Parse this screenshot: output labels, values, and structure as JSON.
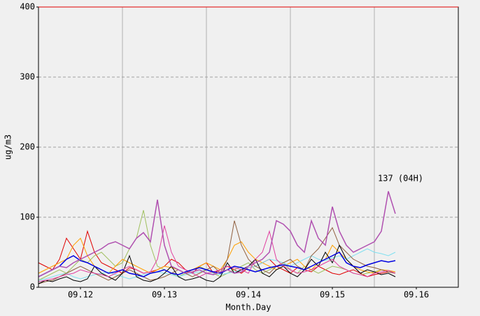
{
  "chart_data": {
    "type": "line",
    "xlabel": "Month.Day",
    "ylabel": "ug/m3",
    "xlim": [
      0,
      120
    ],
    "ylim": [
      0,
      400
    ],
    "yticks": [
      0,
      100,
      200,
      300,
      400
    ],
    "xticks": [
      {
        "value": 12,
        "label": "09.12"
      },
      {
        "value": 36,
        "label": "09.13"
      },
      {
        "value": 60,
        "label": "09.14"
      },
      {
        "value": 84,
        "label": "09.15"
      },
      {
        "value": 108,
        "label": "09.16"
      }
    ],
    "xgrid": [
      24,
      48,
      72,
      96
    ],
    "grid": true,
    "annotation": "137 (04H)",
    "x": [
      0,
      2,
      4,
      6,
      8,
      10,
      12,
      14,
      16,
      18,
      20,
      22,
      24,
      26,
      28,
      30,
      32,
      34,
      36,
      38,
      40,
      42,
      44,
      46,
      48,
      50,
      52,
      54,
      56,
      58,
      60,
      62,
      64,
      66,
      68,
      70,
      72,
      74,
      76,
      78,
      80,
      82,
      84,
      86,
      88,
      90,
      92,
      94,
      96,
      98,
      100,
      102
    ],
    "series": [
      {
        "color": "#e00000",
        "values": [
          35,
          30,
          25,
          40,
          70,
          55,
          40,
          80,
          50,
          35,
          30,
          25,
          20,
          28,
          25,
          20,
          22,
          25,
          30,
          40,
          35,
          25,
          20,
          30,
          35,
          20,
          25,
          30,
          25,
          20,
          28,
          30,
          35,
          40,
          30,
          25,
          20,
          28,
          25,
          22,
          30,
          25,
          20,
          18,
          22,
          25,
          20,
          15,
          18,
          20,
          22,
          20
        ]
      },
      {
        "color": "#a0c060",
        "values": [
          10,
          15,
          20,
          25,
          20,
          30,
          40,
          35,
          45,
          50,
          40,
          30,
          35,
          55,
          70,
          110,
          60,
          30,
          25,
          20,
          15,
          20,
          25,
          30,
          25,
          20,
          15,
          20,
          25,
          30,
          35,
          25,
          20,
          25,
          30,
          35,
          25,
          20,
          30,
          25,
          20,
          25,
          30,
          28,
          25,
          20,
          18,
          20,
          22,
          25,
          24,
          22
        ]
      },
      {
        "color": "#ffa000",
        "values": [
          20,
          25,
          30,
          35,
          40,
          60,
          70,
          45,
          30,
          25,
          20,
          30,
          40,
          35,
          30,
          25,
          20,
          25,
          30,
          28,
          25,
          20,
          25,
          30,
          35,
          30,
          25,
          40,
          60,
          65,
          50,
          40,
          35,
          30,
          25,
          30,
          35,
          40,
          30,
          25,
          35,
          40,
          60,
          50,
          40,
          30,
          25,
          22,
          20,
          25,
          24,
          22
        ]
      },
      {
        "color": "#80e0f0",
        "values": [
          10,
          12,
          15,
          18,
          20,
          15,
          12,
          15,
          18,
          20,
          22,
          18,
          15,
          12,
          15,
          18,
          20,
          22,
          20,
          18,
          15,
          18,
          20,
          22,
          25,
          20,
          18,
          20,
          22,
          25,
          28,
          30,
          35,
          40,
          38,
          35,
          30,
          35,
          40,
          45,
          40,
          38,
          42,
          45,
          40,
          45,
          50,
          55,
          50,
          48,
          45,
          50
        ]
      },
      {
        "color": "#906040",
        "values": [
          5,
          8,
          10,
          15,
          20,
          25,
          30,
          25,
          20,
          15,
          10,
          15,
          20,
          25,
          20,
          15,
          10,
          12,
          15,
          20,
          25,
          20,
          15,
          20,
          25,
          30,
          20,
          40,
          95,
          60,
          40,
          30,
          25,
          20,
          30,
          35,
          40,
          30,
          25,
          45,
          55,
          70,
          85,
          60,
          50,
          40,
          35,
          30,
          28,
          25,
          22,
          20
        ]
      },
      {
        "color": "#000000",
        "values": [
          5,
          10,
          8,
          12,
          15,
          10,
          8,
          12,
          30,
          20,
          15,
          10,
          20,
          45,
          15,
          10,
          8,
          12,
          20,
          30,
          15,
          10,
          12,
          15,
          10,
          8,
          15,
          35,
          20,
          25,
          30,
          40,
          20,
          15,
          25,
          30,
          20,
          15,
          25,
          40,
          30,
          50,
          35,
          60,
          40,
          30,
          20,
          25,
          22,
          18,
          20,
          15
        ]
      },
      {
        "color": "#e040a0",
        "values": [
          8,
          10,
          12,
          15,
          18,
          20,
          25,
          22,
          20,
          18,
          15,
          20,
          25,
          30,
          25,
          20,
          22,
          40,
          88,
          50,
          30,
          25,
          20,
          15,
          20,
          22,
          25,
          30,
          28,
          25,
          20,
          40,
          50,
          80,
          40,
          30,
          25,
          20,
          22,
          25,
          30,
          35,
          40,
          30,
          25,
          20,
          18,
          15,
          20,
          22,
          24,
          20
        ]
      },
      {
        "color": "#0000e0",
        "values": [
          15,
          20,
          25,
          30,
          40,
          45,
          38,
          35,
          30,
          25,
          20,
          22,
          25,
          20,
          18,
          15,
          20,
          22,
          25,
          20,
          18,
          22,
          25,
          28,
          25,
          22,
          20,
          25,
          30,
          28,
          25,
          22,
          25,
          28,
          30,
          32,
          30,
          28,
          25,
          30,
          35,
          40,
          45,
          50,
          35,
          30,
          28,
          32,
          35,
          38,
          36,
          38
        ]
      },
      {
        "color": "#b050b0",
        "values": [
          15,
          20,
          25,
          30,
          28,
          35,
          40,
          45,
          50,
          55,
          62,
          65,
          60,
          55,
          70,
          78,
          65,
          125,
          60,
          30,
          25,
          20,
          22,
          25,
          20,
          18,
          22,
          25,
          20,
          22,
          30,
          35,
          40,
          50,
          95,
          90,
          80,
          60,
          50,
          95,
          70,
          60,
          115,
          80,
          60,
          50,
          55,
          60,
          65,
          80,
          137,
          105
        ]
      }
    ]
  }
}
